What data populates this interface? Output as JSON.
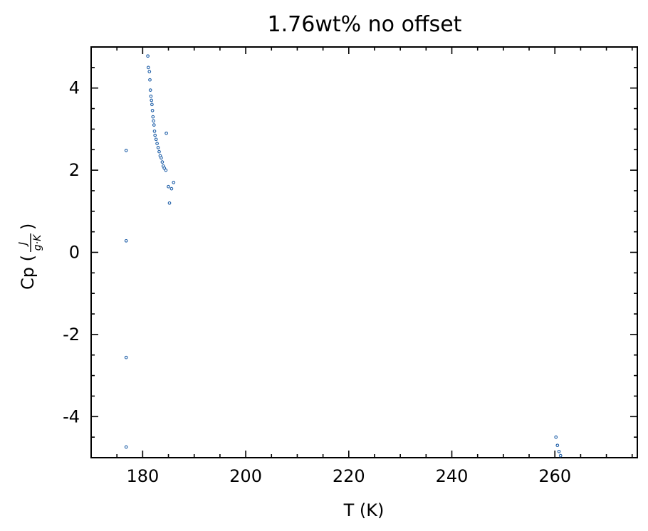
{
  "chart_data": {
    "type": "scatter",
    "title": "1.76wt% no offset",
    "xlabel": "T (K)",
    "ylabel": "Cp (J/g·K)",
    "ylabel_prefix": "Cp (",
    "ylabel_num": "J",
    "ylabel_den": "g·K",
    "ylabel_suffix": ")",
    "xlim": [
      170,
      276
    ],
    "ylim": [
      -5,
      5
    ],
    "xticks": [
      180,
      200,
      220,
      240,
      260
    ],
    "xtick_labels": [
      "180",
      "200",
      "220",
      "240",
      "260"
    ],
    "yticks": [
      -4,
      -2,
      0,
      2,
      4
    ],
    "ytick_labels": [
      "-4",
      "-2",
      "0",
      "2",
      "4"
    ],
    "grid": false,
    "marker_color": "#1f5fa8",
    "series": [
      {
        "points": [
          [
            176.8,
            2.48
          ],
          [
            176.8,
            0.28
          ],
          [
            176.8,
            -2.56
          ],
          [
            176.8,
            -4.74
          ],
          [
            181.0,
            4.78
          ],
          [
            181.1,
            4.5
          ],
          [
            181.3,
            4.4
          ],
          [
            181.4,
            4.2
          ],
          [
            181.5,
            3.95
          ],
          [
            181.6,
            3.8
          ],
          [
            181.7,
            3.7
          ],
          [
            181.8,
            3.6
          ],
          [
            181.9,
            3.45
          ],
          [
            182.0,
            3.3
          ],
          [
            182.1,
            3.2
          ],
          [
            182.2,
            3.1
          ],
          [
            182.3,
            2.95
          ],
          [
            182.4,
            2.85
          ],
          [
            182.6,
            2.75
          ],
          [
            182.8,
            2.65
          ],
          [
            183.0,
            2.55
          ],
          [
            183.2,
            2.45
          ],
          [
            183.4,
            2.35
          ],
          [
            183.6,
            2.3
          ],
          [
            183.8,
            2.2
          ],
          [
            184.0,
            2.1
          ],
          [
            184.2,
            2.05
          ],
          [
            184.5,
            2.0
          ],
          [
            184.6,
            2.9
          ],
          [
            185.2,
            1.2
          ],
          [
            185.0,
            1.6
          ],
          [
            185.6,
            1.55
          ],
          [
            186.0,
            1.7
          ],
          [
            260.2,
            -4.5
          ],
          [
            260.5,
            -4.7
          ],
          [
            260.8,
            -4.85
          ],
          [
            261.1,
            -4.95
          ]
        ]
      }
    ]
  }
}
